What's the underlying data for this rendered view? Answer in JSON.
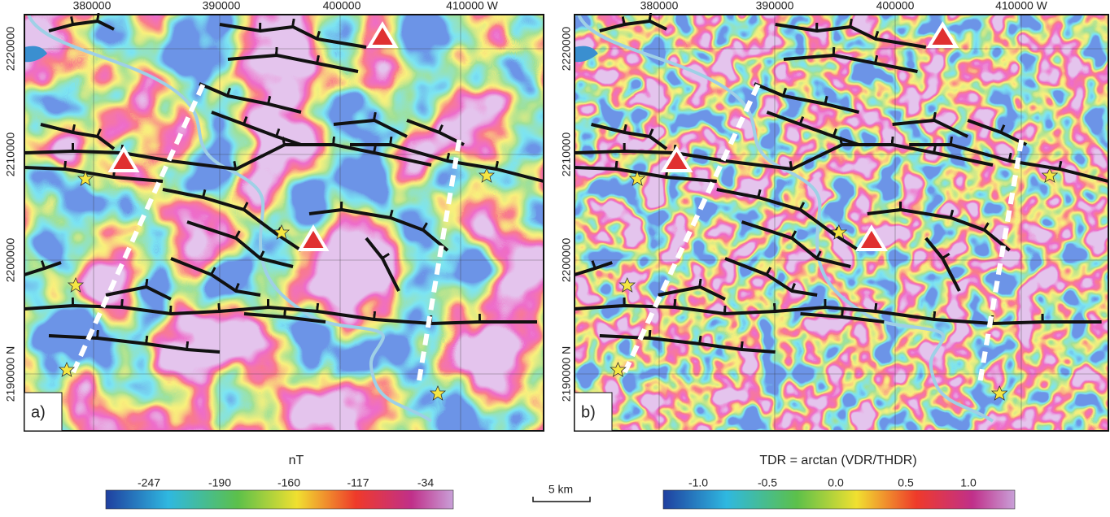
{
  "panels": [
    {
      "label": "a)",
      "x_labels": [
        "380000",
        "390000",
        "400000",
        "410000 W"
      ],
      "y_labels": [
        "2220000",
        "2210000",
        "2200000",
        "2190000 N"
      ]
    },
    {
      "label": "b)",
      "x_labels": [
        "380000",
        "390000",
        "400000",
        "410000 W"
      ],
      "y_labels": [
        "2220000",
        "2210000",
        "2200000",
        "2190000 N"
      ]
    }
  ],
  "colorbars": [
    {
      "title": "nT",
      "ticks": [
        "-247",
        "-190",
        "-160",
        "-117",
        "-34"
      ]
    },
    {
      "title": "TDR = arctan (VDR/THDR)",
      "ticks": [
        "-1.0",
        "-0.5",
        "0.0",
        "0.5",
        "1.0"
      ]
    }
  ],
  "scale_bar": "5 km"
}
